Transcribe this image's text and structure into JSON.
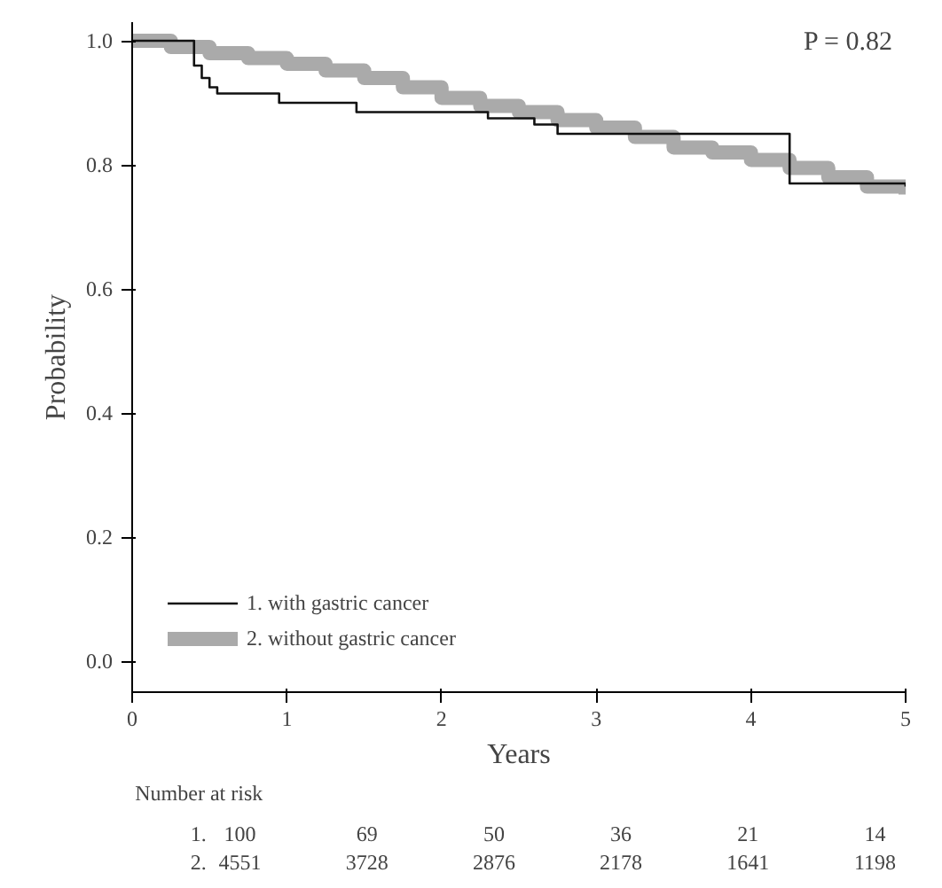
{
  "chart_data": {
    "type": "step",
    "xlabel": "Years",
    "ylabel": "Probability",
    "xlim": [
      0,
      5
    ],
    "ylim": [
      -0.05,
      1.03
    ],
    "xticks": [
      0,
      1,
      2,
      3,
      4,
      5
    ],
    "yticks": [
      {
        "value": 0,
        "label": "0.0"
      },
      {
        "value": 0.2,
        "label": "0.2"
      },
      {
        "value": 0.4,
        "label": "0.4"
      },
      {
        "value": 0.6,
        "label": "0.6"
      },
      {
        "value": 0.8,
        "label": "0.8"
      },
      {
        "value": 1,
        "label": "1.0"
      }
    ],
    "grid": false,
    "legend": "bottom left",
    "marker": "none",
    "line_style": "solid",
    "series": [
      {
        "name": "2. without gastric cancer",
        "color": "#aaaaaa",
        "x": [
          0,
          0.25,
          0.5,
          0.75,
          1,
          1.25,
          1.5,
          1.75,
          2,
          2.25,
          2.5,
          2.75,
          3,
          3.25,
          3.5,
          3.75,
          4,
          4.25,
          4.5,
          4.75,
          5
        ],
        "values": [
          1.0,
          0.99,
          0.98,
          0.972,
          0.963,
          0.952,
          0.94,
          0.925,
          0.908,
          0.895,
          0.885,
          0.872,
          0.86,
          0.845,
          0.828,
          0.82,
          0.808,
          0.795,
          0.78,
          0.765,
          0.752
        ]
      },
      {
        "name": "1. with gastric cancer",
        "color": "#111111",
        "x": [
          0,
          0.4,
          0.45,
          0.5,
          0.55,
          0.95,
          1.45,
          2.0,
          2.3,
          2.6,
          2.75,
          3.95,
          4.25,
          5.0
        ],
        "values": [
          1.0,
          0.96,
          0.94,
          0.925,
          0.915,
          0.9,
          0.885,
          0.885,
          0.875,
          0.865,
          0.85,
          0.85,
          0.77,
          0.765
        ]
      }
    ],
    "annotations": [
      "P = 0.82",
      "Number at risk",
      "1. 100 69 50 36 21 14",
      "2. 4551 3728 2876 2178 1641 1198"
    ]
  }
}
